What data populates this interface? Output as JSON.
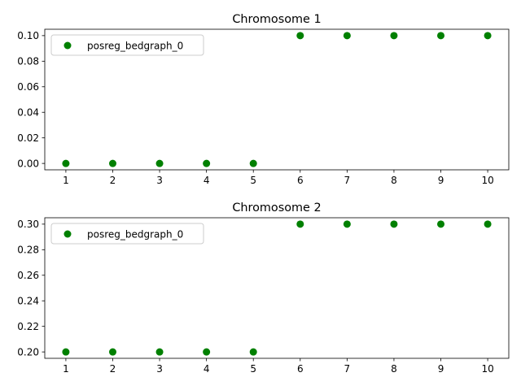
{
  "chart_data": [
    {
      "type": "scatter",
      "title": "Chromosome 1",
      "xlabel": "",
      "ylabel": "",
      "x": [
        1,
        2,
        3,
        4,
        5,
        6,
        7,
        8,
        9,
        10
      ],
      "series": [
        {
          "name": "posreg_bedgraph_0",
          "color": "#008000",
          "values": [
            0.0,
            0.0,
            0.0,
            0.0,
            0.0,
            0.1,
            0.1,
            0.1,
            0.1,
            0.1
          ]
        }
      ],
      "xlim": [
        0.55,
        10.45
      ],
      "ylim": [
        -0.005,
        0.105
      ],
      "xticks": [
        1,
        2,
        3,
        4,
        5,
        6,
        7,
        8,
        9,
        10
      ],
      "xtick_labels": [
        "1",
        "2",
        "3",
        "4",
        "5",
        "6",
        "7",
        "8",
        "9",
        "10"
      ],
      "yticks": [
        0.0,
        0.02,
        0.04,
        0.06,
        0.08,
        0.1
      ],
      "ytick_labels": [
        "0.00",
        "0.02",
        "0.04",
        "0.06",
        "0.08",
        "0.10"
      ],
      "grid": false,
      "legend_position": "top-left"
    },
    {
      "type": "scatter",
      "title": "Chromosome 2",
      "xlabel": "",
      "ylabel": "",
      "x": [
        1,
        2,
        3,
        4,
        5,
        6,
        7,
        8,
        9,
        10
      ],
      "series": [
        {
          "name": "posreg_bedgraph_0",
          "color": "#008000",
          "values": [
            0.2,
            0.2,
            0.2,
            0.2,
            0.2,
            0.3,
            0.3,
            0.3,
            0.3,
            0.3
          ]
        }
      ],
      "xlim": [
        0.55,
        10.45
      ],
      "ylim": [
        0.195,
        0.305
      ],
      "xticks": [
        1,
        2,
        3,
        4,
        5,
        6,
        7,
        8,
        9,
        10
      ],
      "xtick_labels": [
        "1",
        "2",
        "3",
        "4",
        "5",
        "6",
        "7",
        "8",
        "9",
        "10"
      ],
      "yticks": [
        0.2,
        0.22,
        0.24,
        0.26,
        0.28,
        0.3
      ],
      "ytick_labels": [
        "0.20",
        "0.22",
        "0.24",
        "0.26",
        "0.28",
        "0.30"
      ],
      "grid": false,
      "legend_position": "top-left"
    }
  ]
}
